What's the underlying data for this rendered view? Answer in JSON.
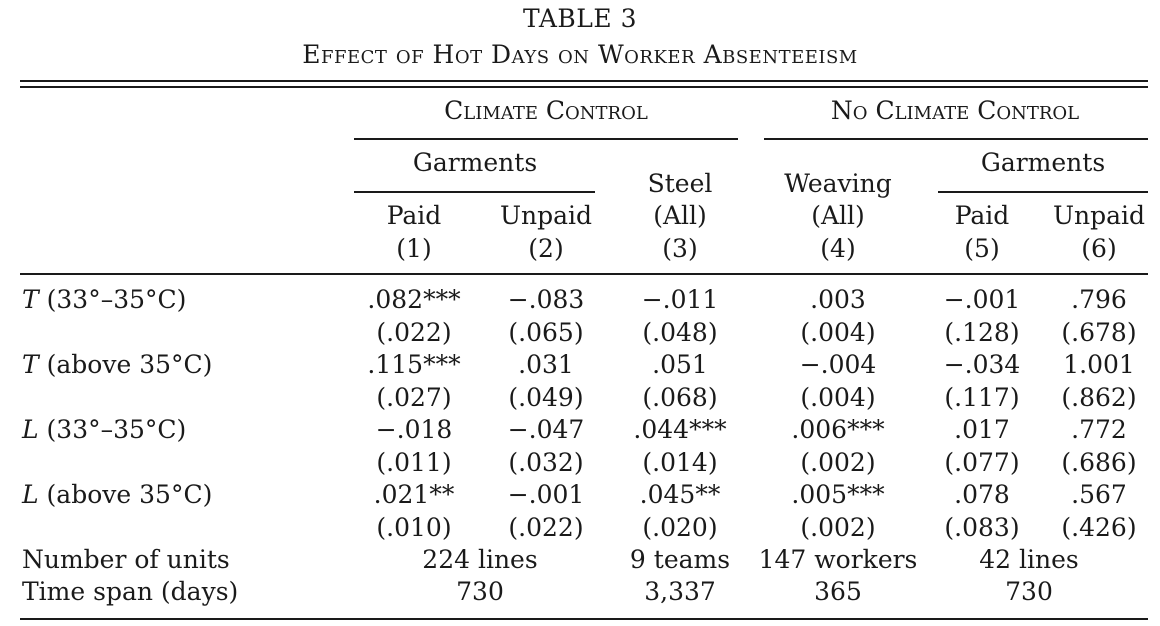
{
  "table": {
    "number": "TABLE 3",
    "caption": "Effect of Hot Days on Worker Absenteeism",
    "groups": [
      {
        "label": "Climate Control"
      },
      {
        "label": "No Climate Control"
      }
    ],
    "subgroups": [
      {
        "label": "Garments"
      },
      {
        "label": "Garments"
      }
    ],
    "columns": [
      {
        "line1": "Paid",
        "line2": "(1)"
      },
      {
        "line1": "Unpaid",
        "line2": "(2)"
      },
      {
        "line0": "Steel",
        "line1": "(All)",
        "line2": "(3)"
      },
      {
        "line0": "Weaving",
        "line1": "(All)",
        "line2": "(4)"
      },
      {
        "line1": "Paid",
        "line2": "(5)"
      },
      {
        "line1": "Unpaid",
        "line2": "(6)"
      }
    ],
    "rows": [
      {
        "var": "T",
        "label": " (33°–35°C)",
        "coef": [
          ".082***",
          "−.083",
          "−.011",
          ".003",
          "−.001",
          ".796"
        ],
        "se": [
          "(.022)",
          "(.065)",
          "(.048)",
          "(.004)",
          "(.128)",
          "(.678)"
        ]
      },
      {
        "var": "T",
        "label": " (above 35°C)",
        "coef": [
          ".115***",
          ".031",
          ".051",
          "−.004",
          "−.034",
          "1.001"
        ],
        "se": [
          "(.027)",
          "(.049)",
          "(.068)",
          "(.004)",
          "(.117)",
          "(.862)"
        ]
      },
      {
        "var": "L",
        "label": " (33°–35°C)",
        "coef": [
          "−.018",
          "−.047",
          ".044***",
          ".006***",
          ".017",
          ".772"
        ],
        "se": [
          "(.011)",
          "(.032)",
          "(.014)",
          "(.002)",
          "(.077)",
          "(.686)"
        ]
      },
      {
        "var": "L",
        "label": " (above 35°C)",
        "coef": [
          ".021**",
          "−.001",
          ".045**",
          ".005***",
          ".078",
          ".567"
        ],
        "se": [
          "(.010)",
          "(.022)",
          "(.020)",
          "(.002)",
          "(.083)",
          "(.426)"
        ]
      }
    ],
    "footer": [
      {
        "label": "Number of units",
        "values": [
          "224 lines",
          "9 teams",
          "147 workers",
          "42 lines"
        ]
      },
      {
        "label": "Time span (days)",
        "values": [
          "730",
          "3,337",
          "365",
          "730"
        ]
      }
    ]
  }
}
